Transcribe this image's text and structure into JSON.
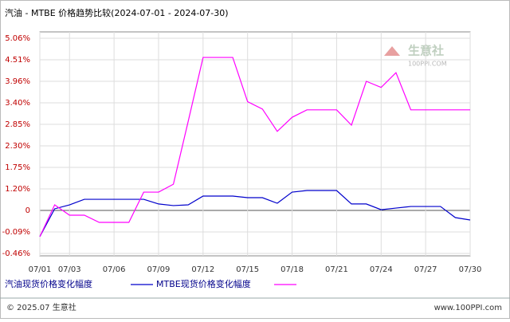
{
  "chart_data": {
    "type": "line",
    "title": "汽油 - MTBE 价格趋势比较(2024-07-01 - 2024-07-30)",
    "watermark": "生意社",
    "watermark_sub": "100PPI.COM",
    "footer_left": "© 2025.07 生意社",
    "footer_right": "www.100PPI.com",
    "categories": [
      "07/01",
      null,
      "07/03",
      null,
      null,
      "07/06",
      null,
      null,
      "07/09",
      null,
      null,
      "07/12",
      null,
      null,
      "07/15",
      null,
      null,
      "07/18",
      null,
      null,
      "07/21",
      null,
      null,
      "07/24",
      null,
      null,
      "07/27",
      null,
      null,
      "07/30"
    ],
    "series": [
      {
        "name": "汽油现货价格变化幅度",
        "color": "#0000cc",
        "values": [
          -0.17,
          0.09,
          0.31,
          0.62,
          0.62,
          0.62,
          0.62,
          0.62,
          0.36,
          0.27,
          0.31,
          0.8,
          0.8,
          0.8,
          0.71,
          0.71,
          0.4,
          1.02,
          1.11,
          1.11,
          1.11,
          0.36,
          0.36,
          0.04,
          0.13,
          0.22,
          0.22,
          0.22,
          -0.03,
          -0.04
        ]
      },
      {
        "name": "MTBE现货价格变化幅度",
        "color": "#ff00ff",
        "values": [
          -0.17,
          0.31,
          -0.02,
          -0.02,
          -0.05,
          -0.05,
          -0.05,
          1.02,
          1.02,
          1.32,
          2.93,
          4.57,
          4.57,
          4.57,
          3.43,
          3.24,
          2.67,
          3.03,
          3.22,
          3.22,
          3.22,
          2.83,
          3.96,
          3.8,
          4.18,
          3.22,
          3.22,
          3.22,
          3.22,
          3.22
        ]
      }
    ],
    "ylim": [
      -0.46,
      5.06
    ],
    "yticks": [
      {
        "value": 5.06,
        "label": "5.06%"
      },
      {
        "value": 4.51,
        "label": "4.51%"
      },
      {
        "value": 3.96,
        "label": "3.96%"
      },
      {
        "value": 3.4,
        "label": "3.40%"
      },
      {
        "value": 2.85,
        "label": "2.85%"
      },
      {
        "value": 2.3,
        "label": "2.30%"
      },
      {
        "value": 1.75,
        "label": "1.75%"
      },
      {
        "value": 1.2,
        "label": "1.20%"
      },
      0,
      {
        "value": -0.09,
        "label": "-0.09%"
      },
      {
        "value": -0.46,
        "label": "-0.46%"
      }
    ],
    "grid": true
  }
}
